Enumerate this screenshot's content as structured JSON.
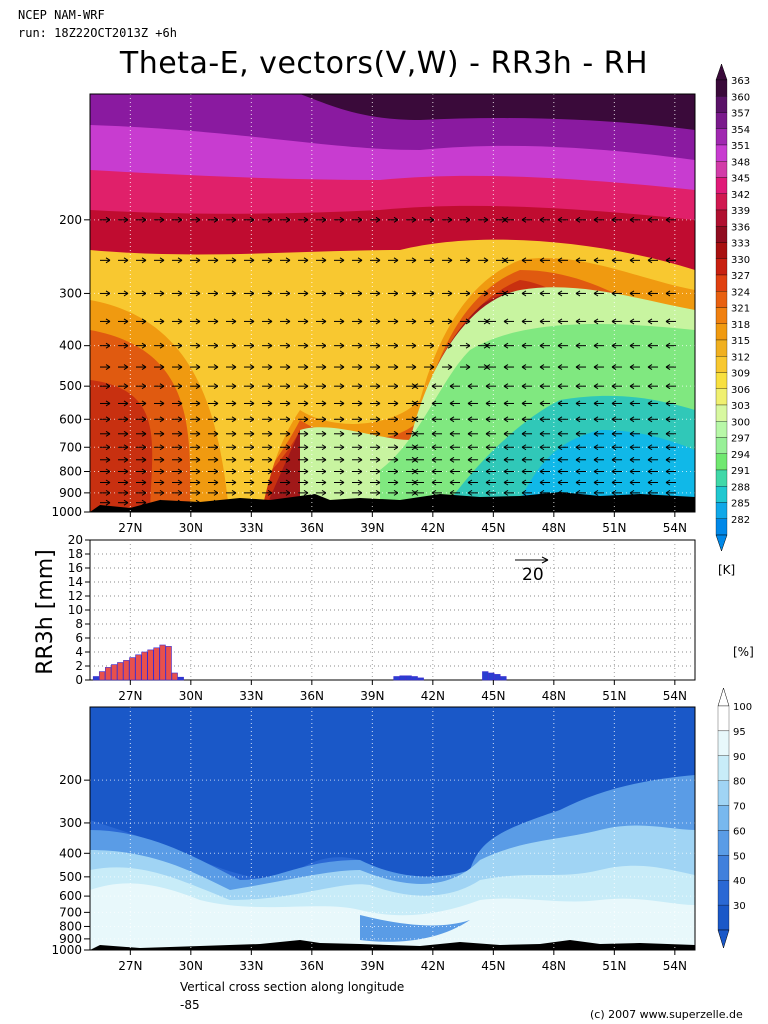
{
  "header": {
    "line1": "NCEP NAM-WRF",
    "line2": "run: 18Z22OCT2013Z +6h"
  },
  "title": "Theta-E, vectors(V,W) - RR3h - RH",
  "footer": {
    "caption": "Vertical cross section along longitude",
    "longitude": "-85",
    "credit": "(c) 2007 www.superzelle.de"
  },
  "chart_data": [
    {
      "panel": "theta-e",
      "type": "heatmap",
      "x_ticks": [
        "27N",
        "30N",
        "33N",
        "36N",
        "39N",
        "42N",
        "45N",
        "48N",
        "51N",
        "54N"
      ],
      "y_ticks": [
        "200",
        "300",
        "400",
        "500",
        "600",
        "700",
        "800",
        "900",
        "1000"
      ],
      "xlim": [
        25,
        55
      ],
      "ylim": [
        1000,
        100
      ],
      "colorbar": {
        "unit": "[K]",
        "levels": [
          363,
          360,
          357,
          354,
          351,
          348,
          345,
          342,
          339,
          336,
          333,
          330,
          327,
          324,
          321,
          318,
          315,
          312,
          309,
          306,
          303,
          300,
          297,
          294,
          291,
          288,
          285,
          282
        ],
        "colors": [
          "#3a0a3a",
          "#5a1268",
          "#7a1a8c",
          "#a028b0",
          "#c83cd0",
          "#d23ca8",
          "#e01a78",
          "#d01850",
          "#b01030",
          "#900c20",
          "#a81010",
          "#c82010",
          "#e04010",
          "#e86010",
          "#f08010",
          "#f09a10",
          "#f0b020",
          "#f8c830",
          "#f8e040",
          "#f0f070",
          "#d8f8a0",
          "#b8f8a8",
          "#98f098",
          "#70e870",
          "#40d8a8",
          "#20c8d0",
          "#10a8e8",
          "#0088e8"
        ]
      },
      "wind_reference": {
        "label": "20"
      }
    },
    {
      "panel": "rr3h",
      "type": "bar",
      "ylabel": "RR3h [mm]",
      "y_ticks": [
        "0",
        "2",
        "4",
        "6",
        "8",
        "10",
        "12",
        "14",
        "16",
        "18",
        "20"
      ],
      "ylim": [
        0,
        20
      ],
      "x_ticks": [
        "27N",
        "30N",
        "33N",
        "36N",
        "39N",
        "42N",
        "45N",
        "48N",
        "51N",
        "54N"
      ],
      "xlim": [
        25,
        55
      ],
      "lat": [
        25.3,
        25.6,
        25.9,
        26.2,
        26.5,
        26.8,
        27.1,
        27.4,
        27.7,
        28.0,
        28.3,
        28.6,
        28.9,
        29.2,
        29.5,
        40.2,
        40.5,
        40.8,
        41.1,
        41.4,
        44.6,
        44.9,
        45.2,
        45.5
      ],
      "values": [
        0.5,
        1.2,
        1.8,
        2.2,
        2.5,
        2.8,
        3.2,
        3.6,
        4.0,
        4.3,
        4.6,
        5.0,
        4.8,
        1.0,
        0.4,
        0.5,
        0.6,
        0.6,
        0.5,
        0.3,
        1.2,
        1.0,
        0.8,
        0.5
      ]
    },
    {
      "panel": "rh",
      "type": "heatmap",
      "x_ticks": [
        "27N",
        "30N",
        "33N",
        "36N",
        "39N",
        "42N",
        "45N",
        "48N",
        "51N",
        "54N"
      ],
      "y_ticks": [
        "200",
        "300",
        "400",
        "500",
        "600",
        "700",
        "800",
        "900",
        "1000"
      ],
      "xlim": [
        25,
        55
      ],
      "ylim": [
        1000,
        100
      ],
      "colorbar": {
        "unit": "[%]",
        "levels": [
          100,
          95,
          90,
          80,
          70,
          60,
          50,
          40,
          30
        ],
        "colors": [
          "#ffffff",
          "#e8f8fb",
          "#c8ecf8",
          "#a0d4f4",
          "#78b8ee",
          "#5a9ce6",
          "#4080dc",
          "#2a68d4",
          "#1a58c8"
        ]
      }
    }
  ]
}
